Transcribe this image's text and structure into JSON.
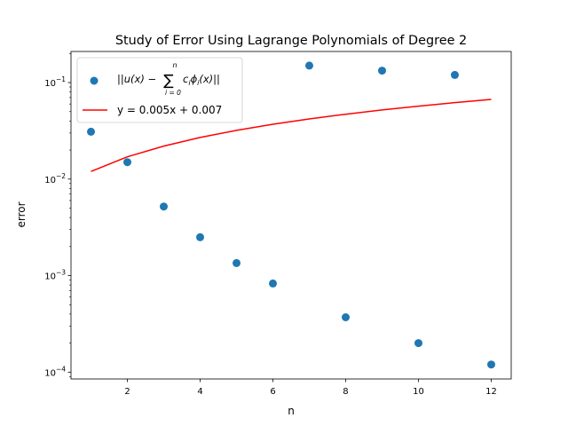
{
  "chart_data": {
    "type": "scatter",
    "title": "Study of Error Using Lagrange Polynomials of Degree 2",
    "xlabel": "n",
    "ylabel": "error",
    "xlim": [
      0.45,
      12.55
    ],
    "ylim": [
      8.5e-05,
      0.21
    ],
    "yscale": "log",
    "grid": false,
    "legend_position": "top-left",
    "x_ticks": [
      2,
      4,
      6,
      8,
      10,
      12
    ],
    "y_ticks": [
      {
        "value": 0.0001,
        "base": "10",
        "exp": "−4"
      },
      {
        "value": 0.001,
        "base": "10",
        "exp": "−3"
      },
      {
        "value": 0.01,
        "base": "10",
        "exp": "−2"
      },
      {
        "value": 0.1,
        "base": "10",
        "exp": "−1"
      }
    ],
    "series": [
      {
        "name": "||u(x) − Σ c_i φ_i(x)||",
        "kind": "scatter",
        "color": "#1f77b4",
        "x": [
          1,
          2,
          3,
          4,
          5,
          6,
          7,
          8,
          9,
          10,
          11,
          12
        ],
        "y": [
          0.031,
          0.015,
          0.0052,
          0.0025,
          0.00135,
          0.00083,
          0.15,
          0.00037,
          0.133,
          0.0002,
          0.12,
          0.00012
        ]
      },
      {
        "name": "y = 0.005x + 0.007",
        "kind": "line",
        "color": "#ff0000",
        "x": [
          1,
          2,
          3,
          4,
          5,
          6,
          7,
          8,
          9,
          10,
          11,
          12
        ],
        "y": [
          0.012,
          0.017,
          0.022,
          0.027,
          0.032,
          0.037,
          0.042,
          0.047,
          0.052,
          0.057,
          0.062,
          0.067
        ]
      }
    ],
    "legend": {
      "math": {
        "norm_open": "||u(x) −",
        "sum_symbol": "∑",
        "sum_upper": "n",
        "sum_lower": "i = 0",
        "term": "c",
        "term_sub": "i",
        "phi": "ϕ",
        "phi_sub": "i",
        "norm_close": "(x)||"
      },
      "line_label": "y = 0.005x + 0.007"
    }
  }
}
